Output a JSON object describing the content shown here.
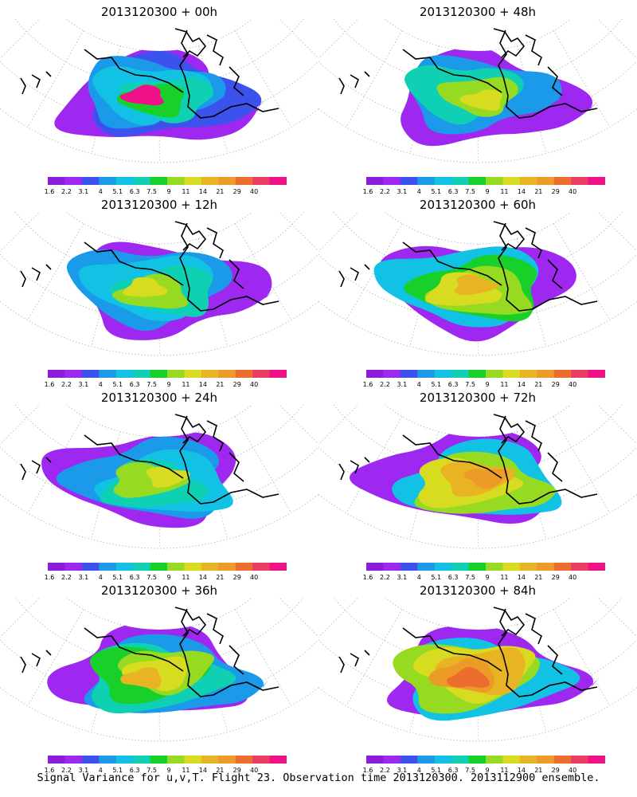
{
  "palette": [
    "#8c1eda",
    "#9e28f0",
    "#3c52ec",
    "#1a9ae8",
    "#12c2e4",
    "#10d0b4",
    "#18d02a",
    "#96da22",
    "#d8dc20",
    "#e8b424",
    "#ec9a28",
    "#ec6e2e",
    "#ec3c64",
    "#f01088"
  ],
  "colorbar_labels": [
    "1.6",
    "2.2",
    "3.1",
    "4",
    "5.1",
    "6.3",
    "7.5",
    "9",
    "11",
    "14",
    "21",
    "29",
    "40"
  ],
  "panels": [
    {
      "title": "2013120300 + 00h",
      "levels": [
        1,
        2,
        3,
        4,
        5,
        6,
        13
      ]
    },
    {
      "title": "2013120300 + 48h",
      "levels": [
        1,
        3,
        5,
        7,
        8
      ]
    },
    {
      "title": "2013120300 + 12h",
      "levels": [
        1,
        3,
        4,
        5,
        7,
        8
      ]
    },
    {
      "title": "2013120300 + 60h",
      "levels": [
        1,
        4,
        6,
        7,
        8,
        9
      ]
    },
    {
      "title": "2013120300 + 24h",
      "levels": [
        1,
        3,
        4,
        5,
        7,
        8
      ]
    },
    {
      "title": "2013120300 + 72h",
      "levels": [
        1,
        4,
        7,
        8,
        9,
        10
      ]
    },
    {
      "title": "2013120300 + 36h",
      "levels": [
        1,
        3,
        5,
        6,
        7,
        8,
        9
      ]
    },
    {
      "title": "2013120300 + 84h",
      "levels": [
        1,
        4,
        7,
        8,
        9,
        10,
        11
      ]
    }
  ],
  "footer": "Signal Variance for u,v,T. Flight 23. Observation time 2013120300. 2013112900 ensemble."
}
